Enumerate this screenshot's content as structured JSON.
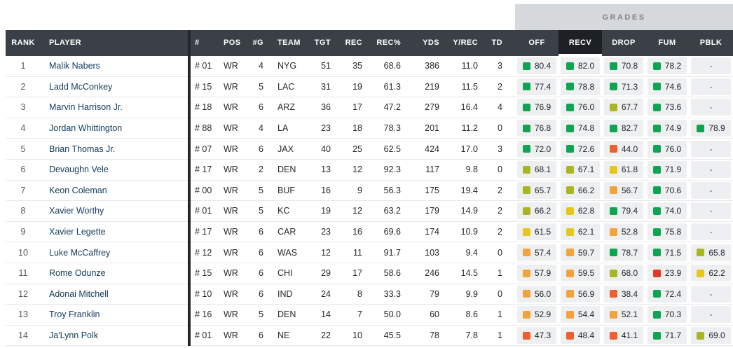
{
  "banner": {
    "label": "GRADES"
  },
  "table": {
    "sorted_key": "recv",
    "columns": [
      {
        "key": "rank",
        "label": "RANK"
      },
      {
        "key": "player",
        "label": "PLAYER"
      },
      {
        "key": "jersey",
        "label": "#"
      },
      {
        "key": "pos",
        "label": "POS"
      },
      {
        "key": "g",
        "label": "#G"
      },
      {
        "key": "team",
        "label": "TEAM"
      },
      {
        "key": "tgt",
        "label": "TGT"
      },
      {
        "key": "rec",
        "label": "REC"
      },
      {
        "key": "recpct",
        "label": "REC%"
      },
      {
        "key": "yds",
        "label": "YDS"
      },
      {
        "key": "yrec",
        "label": "Y/REC"
      },
      {
        "key": "td",
        "label": "TD"
      },
      {
        "key": "off",
        "label": "OFF"
      },
      {
        "key": "recv",
        "label": "RECV"
      },
      {
        "key": "drop",
        "label": "DROP"
      },
      {
        "key": "fum",
        "label": "FUM"
      },
      {
        "key": "pblk",
        "label": "PBLK"
      }
    ],
    "rows": [
      {
        "rank": "1",
        "player": "Malik Nabers",
        "jersey": "# 01",
        "pos": "WR",
        "g": "4",
        "team": "NYG",
        "tgt": "51",
        "rec": "35",
        "recpct": "68.6",
        "yds": "386",
        "yrec": "11.0",
        "td": "3",
        "off": "80.4",
        "recv": "82.0",
        "drop": "70.8",
        "fum": "78.2",
        "pblk": "-"
      },
      {
        "rank": "2",
        "player": "Ladd McConkey",
        "jersey": "# 15",
        "pos": "WR",
        "g": "5",
        "team": "LAC",
        "tgt": "31",
        "rec": "19",
        "recpct": "61.3",
        "yds": "219",
        "yrec": "11.5",
        "td": "2",
        "off": "77.4",
        "recv": "78.8",
        "drop": "71.3",
        "fum": "74.6",
        "pblk": "-"
      },
      {
        "rank": "3",
        "player": "Marvin Harrison Jr.",
        "jersey": "# 18",
        "pos": "WR",
        "g": "6",
        "team": "ARZ",
        "tgt": "36",
        "rec": "17",
        "recpct": "47.2",
        "yds": "279",
        "yrec": "16.4",
        "td": "4",
        "off": "76.9",
        "recv": "76.0",
        "drop": "67.7",
        "fum": "73.6",
        "pblk": "-"
      },
      {
        "rank": "4",
        "player": "Jordan Whittington",
        "jersey": "# 88",
        "pos": "WR",
        "g": "4",
        "team": "LA",
        "tgt": "23",
        "rec": "18",
        "recpct": "78.3",
        "yds": "201",
        "yrec": "11.2",
        "td": "0",
        "off": "76.8",
        "recv": "74.8",
        "drop": "82.7",
        "fum": "74.9",
        "pblk": "78.9"
      },
      {
        "rank": "5",
        "player": "Brian Thomas Jr.",
        "jersey": "# 07",
        "pos": "WR",
        "g": "6",
        "team": "JAX",
        "tgt": "40",
        "rec": "25",
        "recpct": "62.5",
        "yds": "424",
        "yrec": "17.0",
        "td": "3",
        "off": "72.0",
        "recv": "72.6",
        "drop": "44.0",
        "fum": "76.0",
        "pblk": "-"
      },
      {
        "rank": "6",
        "player": "Devaughn Vele",
        "jersey": "# 17",
        "pos": "WR",
        "g": "2",
        "team": "DEN",
        "tgt": "13",
        "rec": "12",
        "recpct": "92.3",
        "yds": "117",
        "yrec": "9.8",
        "td": "0",
        "off": "68.1",
        "recv": "67.1",
        "drop": "61.8",
        "fum": "71.9",
        "pblk": "-"
      },
      {
        "rank": "7",
        "player": "Keon Coleman",
        "jersey": "# 00",
        "pos": "WR",
        "g": "5",
        "team": "BUF",
        "tgt": "16",
        "rec": "9",
        "recpct": "56.3",
        "yds": "175",
        "yrec": "19.4",
        "td": "2",
        "off": "65.7",
        "recv": "66.2",
        "drop": "56.7",
        "fum": "70.6",
        "pblk": "-"
      },
      {
        "rank": "8",
        "player": "Xavier Worthy",
        "jersey": "# 01",
        "pos": "WR",
        "g": "5",
        "team": "KC",
        "tgt": "19",
        "rec": "12",
        "recpct": "63.2",
        "yds": "179",
        "yrec": "14.9",
        "td": "2",
        "off": "66.2",
        "recv": "62.8",
        "drop": "79.4",
        "fum": "74.0",
        "pblk": "-"
      },
      {
        "rank": "9",
        "player": "Xavier Legette",
        "jersey": "# 17",
        "pos": "WR",
        "g": "6",
        "team": "CAR",
        "tgt": "23",
        "rec": "16",
        "recpct": "69.6",
        "yds": "174",
        "yrec": "10.9",
        "td": "2",
        "off": "61.5",
        "recv": "62.1",
        "drop": "52.8",
        "fum": "75.8",
        "pblk": "-"
      },
      {
        "rank": "10",
        "player": "Luke McCaffrey",
        "jersey": "# 12",
        "pos": "WR",
        "g": "6",
        "team": "WAS",
        "tgt": "12",
        "rec": "11",
        "recpct": "91.7",
        "yds": "103",
        "yrec": "9.4",
        "td": "0",
        "off": "57.4",
        "recv": "59.7",
        "drop": "78.7",
        "fum": "71.5",
        "pblk": "65.8"
      },
      {
        "rank": "11",
        "player": "Rome Odunze",
        "jersey": "# 15",
        "pos": "WR",
        "g": "6",
        "team": "CHI",
        "tgt": "29",
        "rec": "17",
        "recpct": "58.6",
        "yds": "246",
        "yrec": "14.5",
        "td": "1",
        "off": "57.9",
        "recv": "59.5",
        "drop": "68.0",
        "fum": "23.9",
        "pblk": "62.2"
      },
      {
        "rank": "12",
        "player": "Adonai Mitchell",
        "jersey": "# 10",
        "pos": "WR",
        "g": "6",
        "team": "IND",
        "tgt": "24",
        "rec": "8",
        "recpct": "33.3",
        "yds": "79",
        "yrec": "9.9",
        "td": "0",
        "off": "56.0",
        "recv": "56.9",
        "drop": "38.4",
        "fum": "72.4",
        "pblk": "-"
      },
      {
        "rank": "13",
        "player": "Troy Franklin",
        "jersey": "# 16",
        "pos": "WR",
        "g": "5",
        "team": "DEN",
        "tgt": "14",
        "rec": "7",
        "recpct": "50.0",
        "yds": "60",
        "yrec": "8.6",
        "td": "1",
        "off": "52.9",
        "recv": "54.4",
        "drop": "52.1",
        "fum": "70.3",
        "pblk": "-"
      },
      {
        "rank": "14",
        "player": "Ja'Lynn Polk",
        "jersey": "# 01",
        "pos": "WR",
        "g": "6",
        "team": "NE",
        "tgt": "22",
        "rec": "10",
        "recpct": "45.5",
        "yds": "78",
        "yrec": "7.8",
        "td": "1",
        "off": "47.3",
        "recv": "48.4",
        "drop": "41.1",
        "fum": "71.7",
        "pblk": "69.0"
      }
    ]
  },
  "colors": {
    "green": "#0fa452",
    "olive": "#a9b623",
    "yellow": "#e6c719",
    "orange": "#f2a33b",
    "dark_orange": "#ee5f2d",
    "red": "#e03a23",
    "header_bg": "#3a4046",
    "sorted_header_bg": "#1d2125",
    "banner_bg": "#d6d9db",
    "player_link": "#143a5c"
  }
}
